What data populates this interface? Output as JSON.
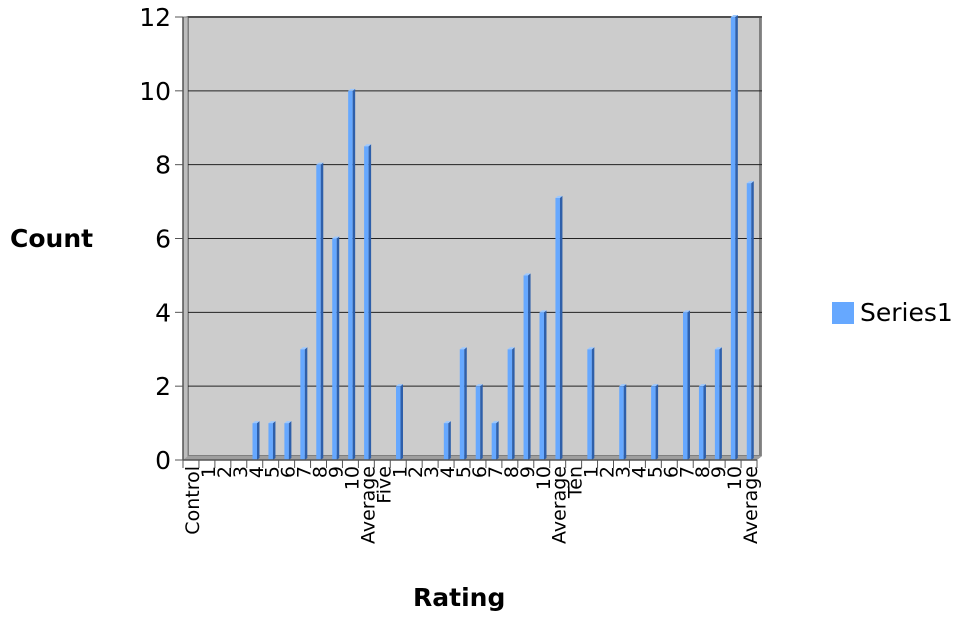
{
  "chart_data": {
    "type": "bar",
    "xlabel": "Rating",
    "ylabel": "Count",
    "ylim": [
      0,
      12
    ],
    "yticks": [
      0,
      2,
      4,
      6,
      8,
      10,
      12
    ],
    "grid": true,
    "legend_position": "right",
    "categories": [
      "Control",
      "1",
      "2",
      "3",
      "4",
      "5",
      "6",
      "7",
      "8",
      "9",
      "10",
      "Average",
      "Five",
      "1",
      "2",
      "3",
      "4",
      "5",
      "6",
      "7",
      "8",
      "9",
      "10",
      "Average",
      "Ten",
      "1",
      "2",
      "3",
      "4",
      "5",
      "6",
      "7",
      "8",
      "9",
      "10",
      "Average"
    ],
    "series": [
      {
        "name": "Series1",
        "color": "#66a8ff",
        "values": [
          0,
          0,
          0,
          0,
          1,
          1,
          1,
          3,
          8,
          6,
          10,
          8.5,
          0,
          2,
          0,
          0,
          1,
          3,
          2,
          1,
          3,
          5,
          4,
          7.1,
          0,
          3,
          0,
          2,
          0,
          2,
          0,
          4,
          2,
          3,
          12,
          7.5
        ]
      }
    ]
  }
}
